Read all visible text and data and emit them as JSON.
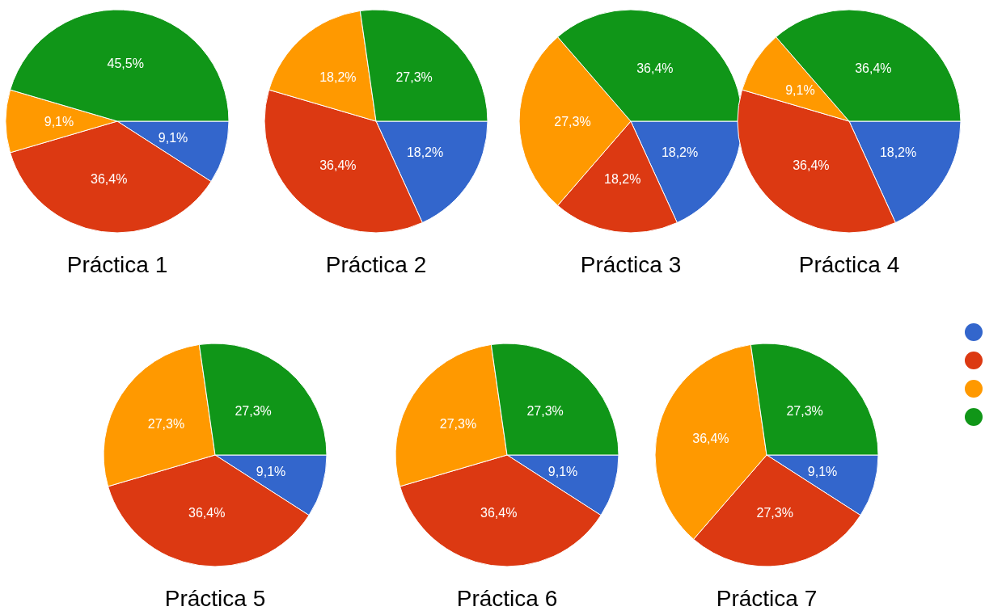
{
  "chart_data": [
    {
      "type": "pie",
      "title": "Práctica 1",
      "categories": [
        null,
        null,
        null,
        null
      ],
      "values": [
        9.1,
        36.4,
        9.1,
        45.5
      ],
      "value_labels": [
        "9,1%",
        "36,4%",
        "9,1%",
        "45,5%"
      ],
      "colors": [
        "#3366cc",
        "#dc3912",
        "#ff9900",
        "#109618"
      ]
    },
    {
      "type": "pie",
      "title": "Práctica 2",
      "categories": [
        null,
        null,
        null,
        null
      ],
      "values": [
        18.2,
        36.4,
        18.2,
        27.3
      ],
      "value_labels": [
        "18,2%",
        "36,4%",
        "18,2%",
        "27,3%"
      ],
      "colors": [
        "#3366cc",
        "#dc3912",
        "#ff9900",
        "#109618"
      ]
    },
    {
      "type": "pie",
      "title": "Práctica 3",
      "categories": [
        null,
        null,
        null,
        null
      ],
      "values": [
        18.2,
        18.2,
        27.3,
        36.4
      ],
      "value_labels": [
        "18,2%",
        "18,2%",
        "27,3%",
        "36,4%"
      ],
      "colors": [
        "#3366cc",
        "#dc3912",
        "#ff9900",
        "#109618"
      ]
    },
    {
      "type": "pie",
      "title": "Práctica 4",
      "categories": [
        null,
        null,
        null,
        null
      ],
      "values": [
        18.2,
        36.4,
        9.1,
        36.4
      ],
      "value_labels": [
        "18,2%",
        "36,4%",
        "9,1%",
        "36,4%"
      ],
      "colors": [
        "#3366cc",
        "#dc3912",
        "#ff9900",
        "#109618"
      ]
    },
    {
      "type": "pie",
      "title": "Práctica 5",
      "categories": [
        null,
        null,
        null,
        null
      ],
      "values": [
        9.1,
        36.4,
        27.3,
        27.3
      ],
      "value_labels": [
        "9,1%",
        "36,4%",
        "27,3%",
        "27,3%"
      ],
      "colors": [
        "#3366cc",
        "#dc3912",
        "#ff9900",
        "#109618"
      ]
    },
    {
      "type": "pie",
      "title": "Práctica 6",
      "categories": [
        null,
        null,
        null,
        null
      ],
      "values": [
        9.1,
        36.4,
        27.3,
        27.3
      ],
      "value_labels": [
        "9,1%",
        "36,4%",
        "27,3%",
        "27,3%"
      ],
      "colors": [
        "#3366cc",
        "#dc3912",
        "#ff9900",
        "#109618"
      ]
    },
    {
      "type": "pie",
      "title": "Práctica 7",
      "categories": [
        null,
        null,
        null,
        null
      ],
      "values": [
        9.1,
        27.3,
        36.4,
        27.3
      ],
      "value_labels": [
        "9,1%",
        "27,3%",
        "36,4%",
        "27,3%"
      ],
      "colors": [
        "#3366cc",
        "#dc3912",
        "#ff9900",
        "#109618"
      ]
    }
  ]
}
